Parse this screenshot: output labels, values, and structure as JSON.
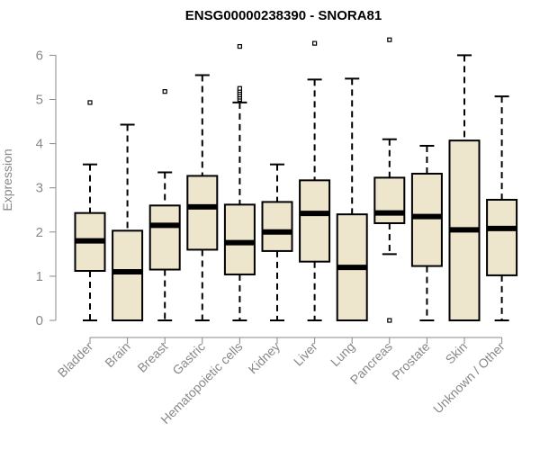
{
  "chart_data": {
    "type": "boxplot",
    "title": "ENSG00000238390 - SNORA81",
    "xlabel": "",
    "ylabel": "Expression",
    "ylim": [
      0,
      6.3
    ],
    "yticks": [
      "0",
      "1",
      "2",
      "3",
      "4",
      "5",
      "6"
    ],
    "colors": {
      "box_fill": "#ede6cc",
      "box_stroke": "#000000",
      "axis": "#888888"
    },
    "categories": [
      "Bladder",
      "Brain",
      "Breast",
      "Gastric",
      "Hematopoietic cells",
      "Kidney",
      "Liver",
      "Lung",
      "Pancreas",
      "Prostate",
      "Skin",
      "Unknown / Other"
    ],
    "series": [
      {
        "name": "Bladder",
        "min": 0,
        "q1": 1.12,
        "median": 1.8,
        "q3": 2.43,
        "max": 3.53,
        "outliers": [
          4.93
        ]
      },
      {
        "name": "Brain",
        "min": 0,
        "q1": 0,
        "median": 1.1,
        "q3": 2.03,
        "max": 4.43,
        "outliers": []
      },
      {
        "name": "Breast",
        "min": 0,
        "q1": 1.15,
        "median": 2.15,
        "q3": 2.6,
        "max": 3.35,
        "outliers": [
          5.18
        ]
      },
      {
        "name": "Gastric",
        "min": 0,
        "q1": 1.6,
        "median": 2.57,
        "q3": 3.27,
        "max": 5.55,
        "outliers": []
      },
      {
        "name": "Hematopoietic cells",
        "min": 0,
        "q1": 1.04,
        "median": 1.76,
        "q3": 2.62,
        "max": 4.93,
        "outliers": [
          5.0,
          5.05,
          5.1,
          5.15,
          5.2,
          5.25,
          6.2
        ]
      },
      {
        "name": "Kidney",
        "min": 0,
        "q1": 1.57,
        "median": 2.0,
        "q3": 2.68,
        "max": 3.53,
        "outliers": []
      },
      {
        "name": "Liver",
        "min": 0,
        "q1": 1.33,
        "median": 2.42,
        "q3": 3.17,
        "max": 5.45,
        "outliers": [
          6.27
        ]
      },
      {
        "name": "Lung",
        "min": 0,
        "q1": 0,
        "median": 1.2,
        "q3": 2.4,
        "max": 5.47,
        "outliers": []
      },
      {
        "name": "Pancreas",
        "min": 1.5,
        "q1": 2.2,
        "median": 2.43,
        "q3": 3.23,
        "max": 4.1,
        "outliers": [
          0,
          6.35
        ]
      },
      {
        "name": "Prostate",
        "min": 0,
        "q1": 1.23,
        "median": 2.35,
        "q3": 3.32,
        "max": 3.95,
        "outliers": []
      },
      {
        "name": "Skin",
        "min": 0,
        "q1": 0,
        "median": 2.05,
        "q3": 4.07,
        "max": 6.0,
        "outliers": []
      },
      {
        "name": "Unknown / Other",
        "min": 0,
        "q1": 1.02,
        "median": 2.08,
        "q3": 2.73,
        "max": 5.07,
        "outliers": []
      }
    ]
  }
}
